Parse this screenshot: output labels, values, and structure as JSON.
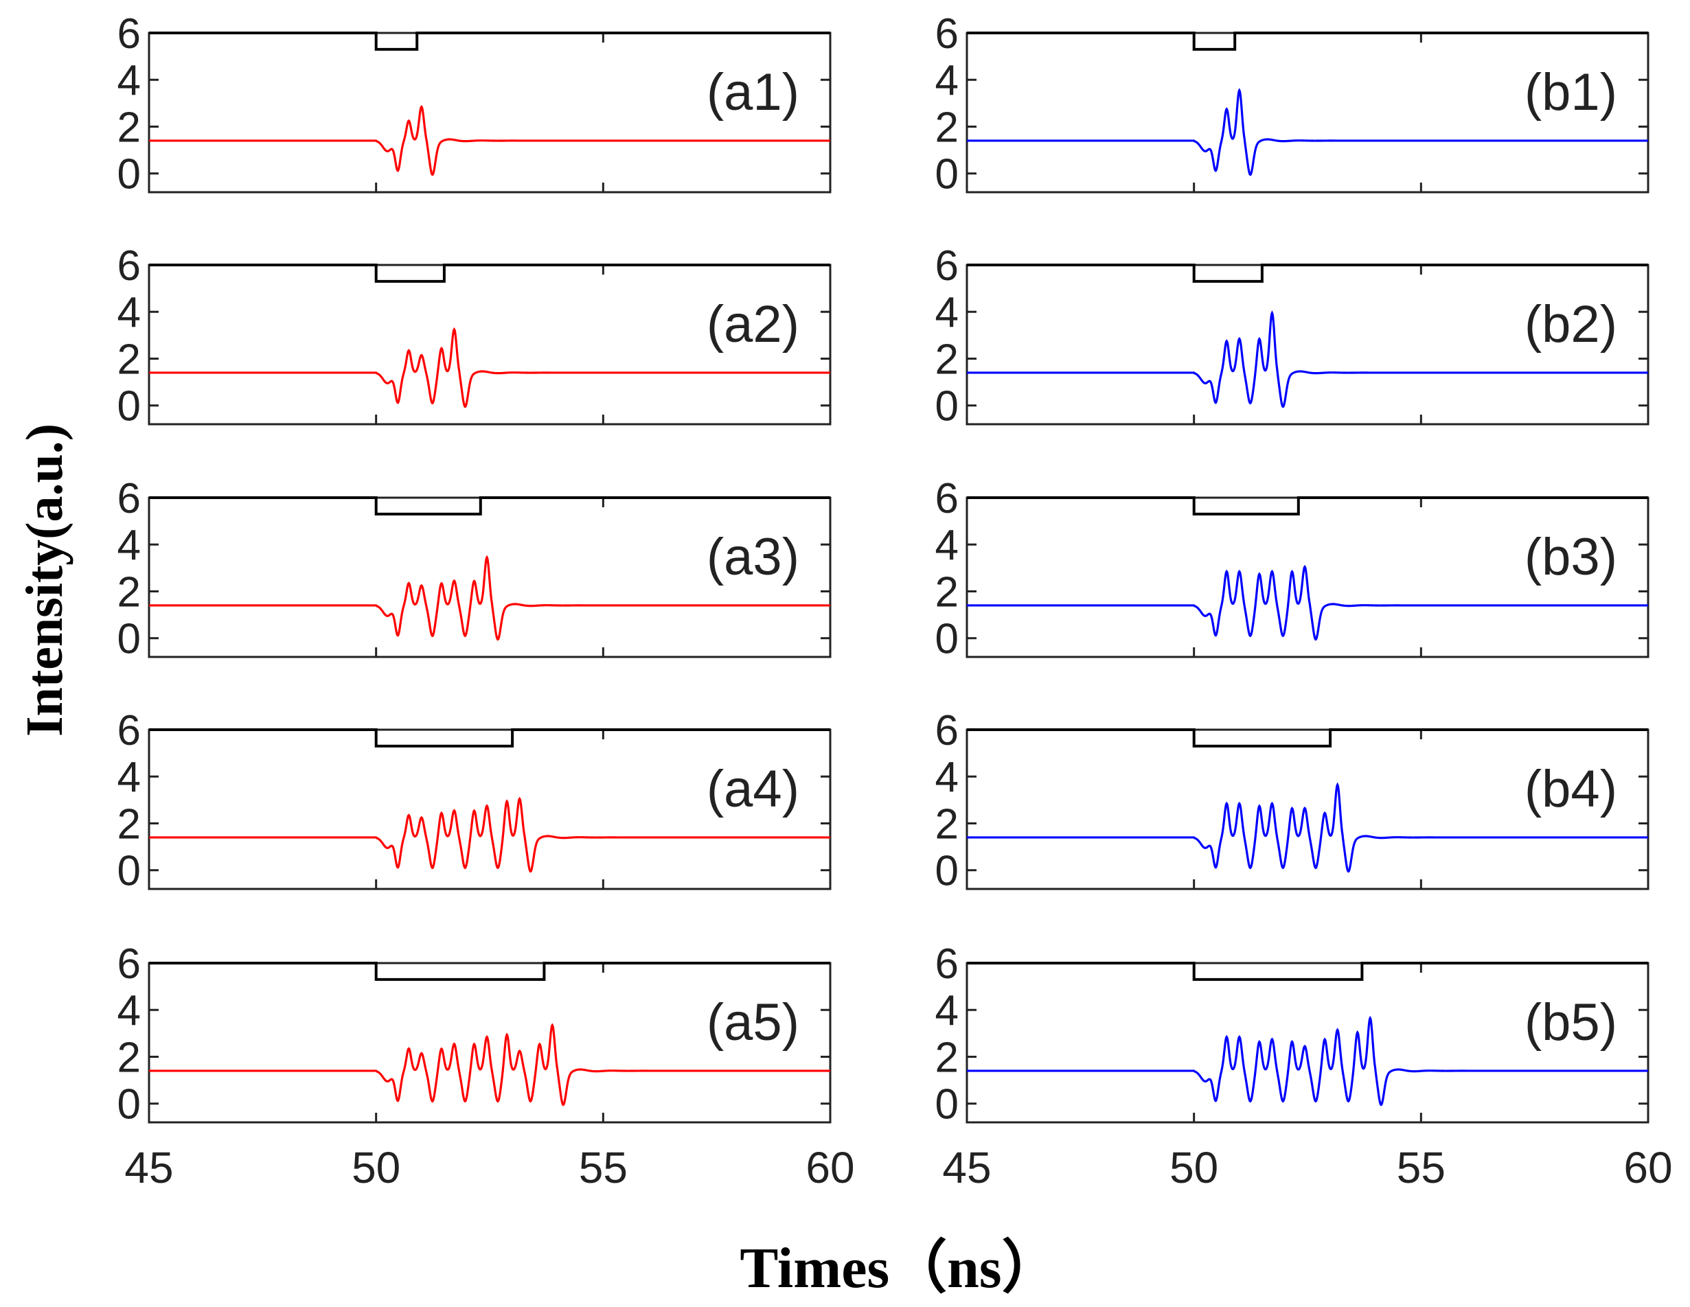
{
  "figure": {
    "ylabel": "Intensity(a.u.)",
    "xlabel": "Times（ns）"
  },
  "chart_data": {
    "type": "line",
    "layout": "grid 5 rows x 2 columns",
    "xlim": [
      45,
      60
    ],
    "ylim": [
      -0.8,
      6
    ],
    "xticks": [
      45,
      50,
      55,
      60
    ],
    "yticks": [
      0,
      2,
      4,
      6
    ],
    "series_colors": {
      "a": "#ff0000",
      "b": "#0000ff",
      "reference": "#000000"
    },
    "baseline_intensity": 1.4,
    "reference_pulse": {
      "high": 6,
      "low": 5.3,
      "start": 50
    },
    "panels": [
      {
        "label": "(a1)",
        "column": "a",
        "row": 1,
        "pulse_end": 50.9,
        "peaks": [
          2.0,
          2.6
        ]
      },
      {
        "label": "(a2)",
        "column": "a",
        "row": 2,
        "pulse_end": 51.5,
        "peaks": [
          2.1,
          1.9,
          2.2,
          3.0
        ]
      },
      {
        "label": "(a3)",
        "column": "a",
        "row": 3,
        "pulse_end": 52.3,
        "peaks": [
          2.1,
          2.0,
          2.1,
          2.2,
          2.2,
          3.2
        ]
      },
      {
        "label": "(a4)",
        "column": "a",
        "row": 4,
        "pulse_end": 53.0,
        "peaks": [
          2.1,
          2.0,
          2.2,
          2.3,
          2.3,
          2.5,
          2.7,
          2.8
        ]
      },
      {
        "label": "(a5)",
        "column": "a",
        "row": 5,
        "pulse_end": 53.7,
        "peaks": [
          2.1,
          1.9,
          2.1,
          2.3,
          2.3,
          2.6,
          2.7,
          2.0,
          2.3,
          3.1
        ]
      },
      {
        "label": "(b1)",
        "column": "b",
        "row": 1,
        "pulse_end": 50.9,
        "peaks": [
          2.5,
          3.3
        ]
      },
      {
        "label": "(b2)",
        "column": "b",
        "row": 2,
        "pulse_end": 51.5,
        "peaks": [
          2.5,
          2.6,
          2.6,
          3.7
        ]
      },
      {
        "label": "(b3)",
        "column": "b",
        "row": 3,
        "pulse_end": 52.3,
        "peaks": [
          2.6,
          2.6,
          2.5,
          2.6,
          2.6,
          2.8
        ]
      },
      {
        "label": "(b4)",
        "column": "b",
        "row": 4,
        "pulse_end": 53.0,
        "peaks": [
          2.6,
          2.6,
          2.5,
          2.6,
          2.4,
          2.4,
          2.2,
          3.4
        ]
      },
      {
        "label": "(b5)",
        "column": "b",
        "row": 5,
        "pulse_end": 53.7,
        "peaks": [
          2.6,
          2.6,
          2.4,
          2.5,
          2.4,
          2.2,
          2.5,
          2.9,
          2.8,
          3.4
        ]
      }
    ]
  }
}
